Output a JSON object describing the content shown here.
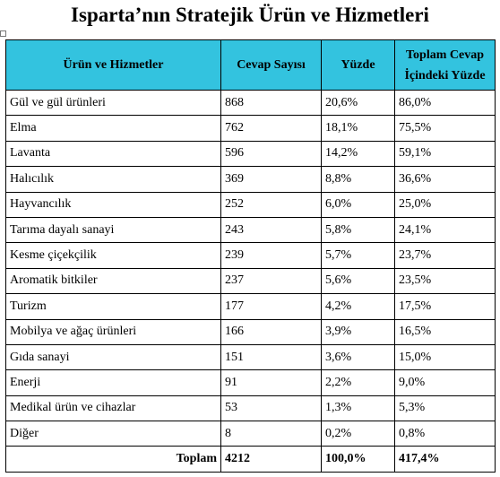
{
  "title": "Isparta’nın Stratejik Ürün ve Hizmetleri",
  "table": {
    "header": [
      "Ürün ve Hizmetler",
      "Cevap Sayısı",
      "Yüzde",
      "Toplam Cevap İçindeki Yüzde"
    ],
    "rows": [
      [
        "Gül ve gül ürünleri",
        "868",
        "20,6%",
        "86,0%"
      ],
      [
        "Elma",
        "762",
        "18,1%",
        "75,5%"
      ],
      [
        "Lavanta",
        "596",
        "14,2%",
        "59,1%"
      ],
      [
        "Halıcılık",
        "369",
        "8,8%",
        "36,6%"
      ],
      [
        "Hayvancılık",
        "252",
        "6,0%",
        "25,0%"
      ],
      [
        "Tarıma dayalı sanayi",
        "243",
        "5,8%",
        "24,1%"
      ],
      [
        "Kesme çiçekçilik",
        "239",
        "5,7%",
        "23,7%"
      ],
      [
        "Aromatik bitkiler",
        "237",
        "5,6%",
        "23,5%"
      ],
      [
        "Turizm",
        "177",
        "4,2%",
        "17,5%"
      ],
      [
        "Mobilya ve ağaç ürünleri",
        "166",
        "3,9%",
        "16,5%"
      ],
      [
        "Gıda sanayi",
        "151",
        "3,6%",
        "15,0%"
      ],
      [
        "Enerji",
        "91",
        "2,2%",
        "9,0%"
      ],
      [
        "Medikal ürün ve cihazlar",
        "53",
        "1,3%",
        "5,3%"
      ],
      [
        "Diğer",
        "8",
        "0,2%",
        "0,8%"
      ]
    ],
    "total": [
      "Toplam",
      "4212",
      "100,0%",
      "417,4%"
    ]
  }
}
